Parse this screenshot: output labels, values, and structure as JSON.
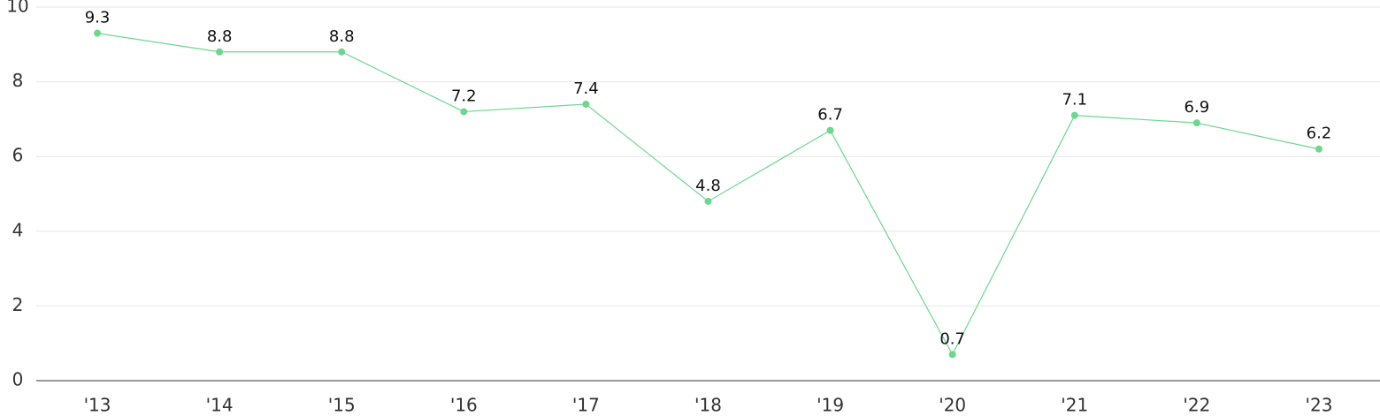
{
  "chart_data": {
    "type": "line",
    "categories": [
      "'13",
      "'14",
      "'15",
      "'16",
      "'17",
      "'18",
      "'19",
      "'20",
      "'21",
      "'22",
      "'23"
    ],
    "values": [
      9.3,
      8.8,
      8.8,
      7.2,
      7.4,
      4.8,
      6.7,
      0.7,
      7.1,
      6.9,
      6.2
    ],
    "color": "#6fd68f",
    "ylim": [
      0,
      10
    ],
    "yticks": [
      0,
      2,
      4,
      6,
      8,
      10
    ],
    "grid": true
  }
}
